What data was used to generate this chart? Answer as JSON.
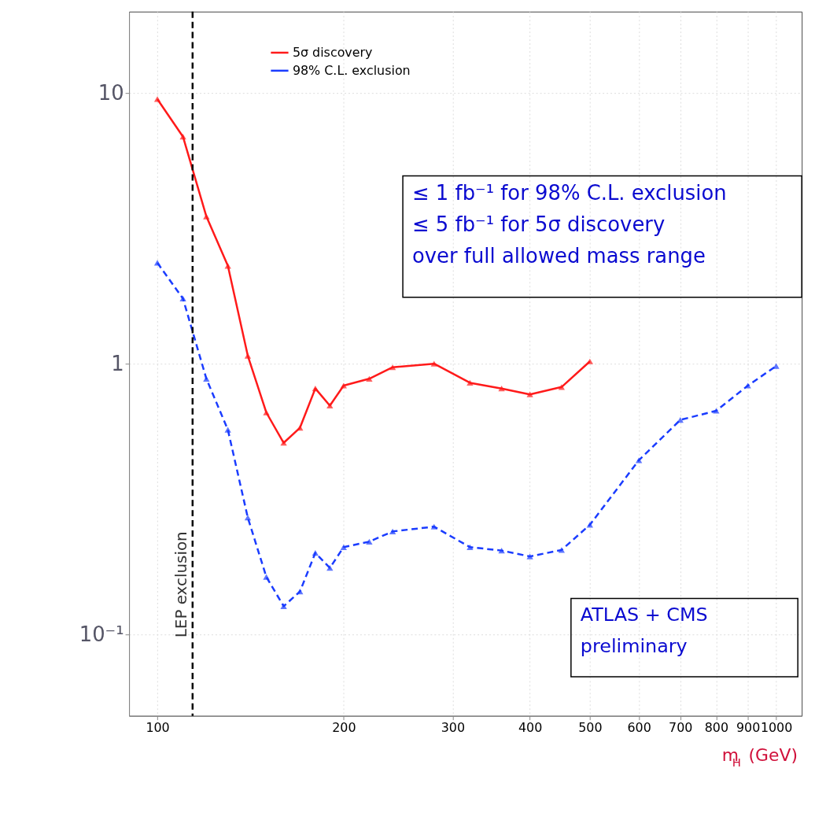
{
  "chart_data": {
    "type": "line",
    "xlabel": "m$_{H}$ (GeV)",
    "log": "xy",
    "grid": true,
    "legend": "top",
    "marker": "triangle",
    "xlim": [
      90,
      1100
    ],
    "xticks": [
      100,
      200,
      300,
      400,
      500,
      600,
      700,
      800,
      900,
      1000
    ],
    "ylim": [
      0.05,
      20
    ],
    "yticks": [
      {
        "value": 0.1,
        "label": "10⁻¹"
      },
      1,
      10
    ],
    "x": [
      100,
      110,
      120,
      130,
      140,
      150,
      160,
      170,
      180,
      190,
      200,
      220,
      240,
      280,
      320,
      360,
      400,
      450,
      500,
      600,
      700,
      800,
      900,
      1000
    ],
    "series": [
      {
        "name": "5σ discovery",
        "color": "#ff1a1a",
        "line_style": "solid",
        "values": [
          9.5,
          6.9,
          3.5,
          2.3,
          1.07,
          0.66,
          0.51,
          0.58,
          0.81,
          0.7,
          0.83,
          0.88,
          0.97,
          1.0,
          0.85,
          0.81,
          0.77,
          0.82,
          1.02,
          null,
          null,
          null,
          null,
          null
        ]
      },
      {
        "name": "98% C.L. exclusion",
        "color": "#1a3cff",
        "line_style": "dashed",
        "values": [
          2.36,
          1.74,
          0.88,
          0.57,
          0.27,
          0.163,
          0.127,
          0.144,
          0.2,
          0.176,
          0.21,
          0.22,
          0.24,
          0.25,
          0.21,
          0.204,
          0.194,
          0.205,
          0.254,
          0.44,
          0.62,
          0.67,
          0.83,
          0.98
        ]
      }
    ],
    "ref_lines": [
      {
        "axis": "x",
        "value": 114,
        "label": "LEP exclusion",
        "color": "#000000",
        "line_style": "dashed"
      }
    ],
    "annotations": [
      "≤ 1 fb⁻¹ for 98% C.L. exclusion\n≤ 5 fb⁻¹ for 5σ discovery\nover full allowed mass range",
      "ATLAS + CMS\npreliminary"
    ]
  }
}
